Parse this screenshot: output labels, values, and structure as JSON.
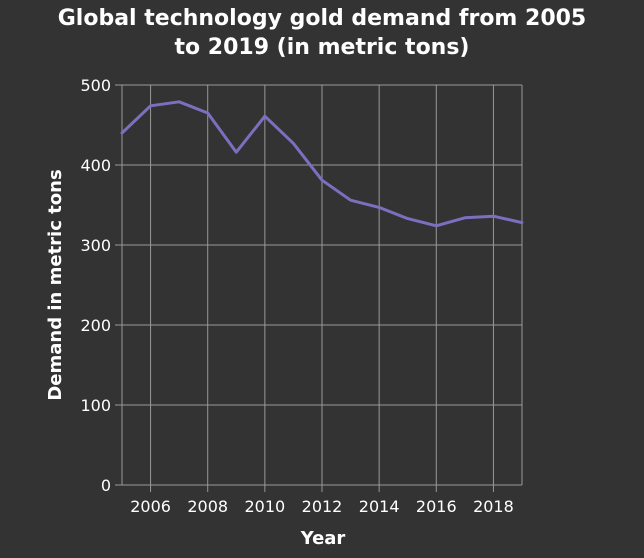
{
  "chart_data": {
    "type": "line",
    "title_lines": [
      "Global technology gold demand from 2005",
      "to 2019 (in metric tons)"
    ],
    "xlabel": "Year",
    "ylabel": "Demand in metric tons",
    "x": [
      2005,
      2006,
      2007,
      2008,
      2009,
      2010,
      2011,
      2012,
      2013,
      2014,
      2015,
      2016,
      2017,
      2018,
      2019
    ],
    "series": [
      {
        "values": [
          440,
          474,
          479,
          465,
          416,
          461,
          427,
          381,
          356,
          347,
          333,
          324,
          334,
          336,
          328
        ]
      }
    ],
    "xlim": [
      2005,
      2019
    ],
    "ylim": [
      0,
      500
    ],
    "x_ticks": [
      "2006",
      "2008",
      "2010",
      "2012",
      "2014",
      "2016",
      "2018"
    ],
    "y_ticks": [
      "0",
      "100",
      "200",
      "300",
      "400",
      "500"
    ],
    "grid": true,
    "line_color": "#7b6fbf",
    "background_color": "#333333",
    "grid_color": "#999999"
  }
}
